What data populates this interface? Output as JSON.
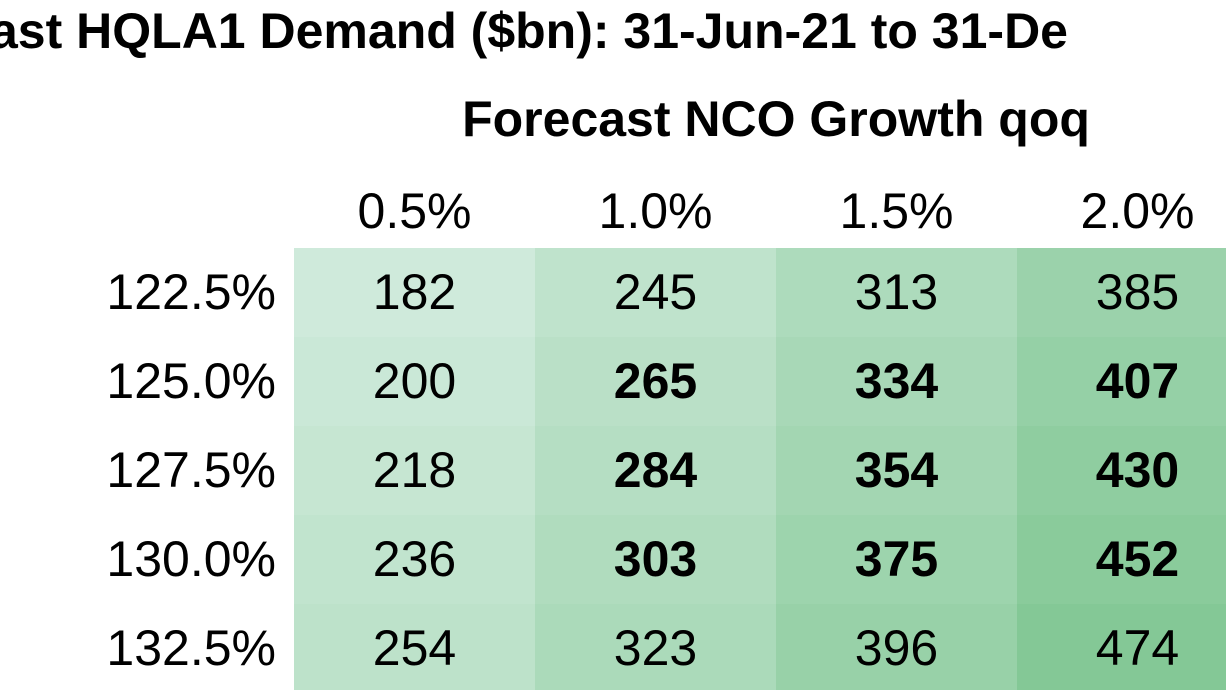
{
  "chart_data": {
    "type": "table",
    "title": "ast HQLA1 Demand ($bn): 31-Jun-21 to 31-De",
    "subtitle": "Forecast NCO Growth qoq",
    "columns": [
      "0.5%",
      "1.0%",
      "1.5%",
      "2.0%"
    ],
    "rows": [
      {
        "label": "122.5%",
        "values": [
          182,
          245,
          313,
          385
        ],
        "bold": [
          false,
          false,
          false,
          false
        ]
      },
      {
        "label": "125.0%",
        "values": [
          200,
          265,
          334,
          407
        ],
        "bold": [
          false,
          true,
          true,
          true
        ]
      },
      {
        "label": "127.5%",
        "values": [
          218,
          284,
          354,
          430
        ],
        "bold": [
          false,
          true,
          true,
          true
        ]
      },
      {
        "label": "130.0%",
        "values": [
          236,
          303,
          375,
          452
        ],
        "bold": [
          false,
          true,
          true,
          true
        ]
      },
      {
        "label": "132.5%",
        "values": [
          254,
          323,
          396,
          474
        ],
        "bold": [
          false,
          false,
          false,
          false
        ]
      }
    ],
    "color_scale": {
      "low": "#cfeadb",
      "high": "#84c896"
    }
  }
}
